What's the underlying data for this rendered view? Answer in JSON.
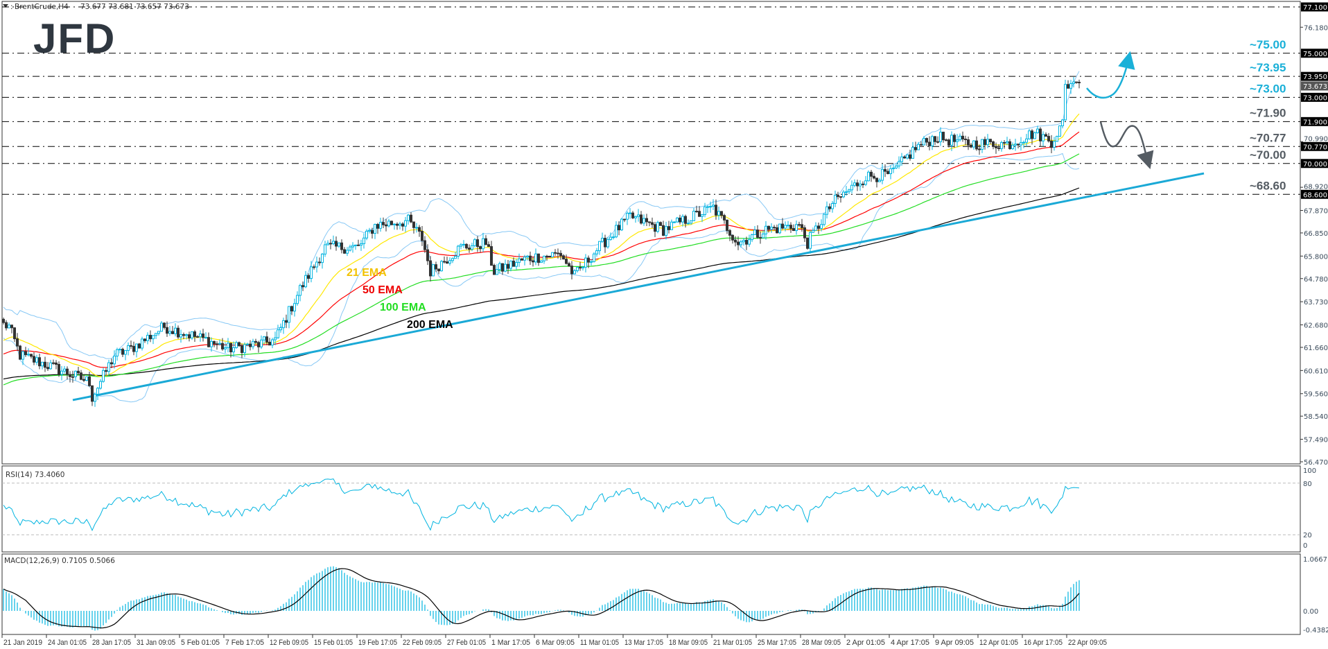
{
  "header": {
    "symbol": "BrentCrude,H4",
    "ohlc": "73.677 73.681 73.657 73.673"
  },
  "logo": {
    "text": "JFD"
  },
  "colors": {
    "bull": "#00b4e0",
    "bear": "#333333",
    "bollinger": "#87c8f5",
    "ema21": "#ffe800",
    "ema50": "#ff0000",
    "ema100": "#22dd22",
    "ema200": "#000000",
    "trendline": "#1aa9d6",
    "level_up": "#1ab0d8",
    "level_down": "#555c63",
    "macd_hist": "#00b4e0"
  },
  "chart_data": {
    "type": "candlestick",
    "symbol": "BrentCrude",
    "timeframe": "H4",
    "ylim": [
      56.47,
      77.1
    ],
    "current_price": 73.673,
    "price_path": [
      [
        0,
        62.7
      ],
      [
        2,
        62.6
      ],
      [
        6,
        61.3
      ],
      [
        15,
        60.9
      ],
      [
        31,
        60.1
      ],
      [
        32,
        59.4
      ],
      [
        40,
        61.3
      ],
      [
        46,
        61.6
      ],
      [
        58,
        62.6
      ],
      [
        73,
        62.0
      ],
      [
        81,
        61.6
      ],
      [
        92,
        61.8
      ],
      [
        98,
        62.0
      ],
      [
        107,
        64.3
      ],
      [
        116,
        66.2
      ],
      [
        128,
        66.2
      ],
      [
        134,
        67.2
      ],
      [
        146,
        67.4
      ],
      [
        151,
        66.6
      ],
      [
        154,
        65.1
      ],
      [
        165,
        66.2
      ],
      [
        174,
        66.4
      ],
      [
        177,
        65.1
      ],
      [
        189,
        65.7
      ],
      [
        201,
        65.9
      ],
      [
        206,
        64.9
      ],
      [
        214,
        66.1
      ],
      [
        226,
        67.6
      ],
      [
        238,
        67.0
      ],
      [
        256,
        68.0
      ],
      [
        265,
        66.4
      ],
      [
        275,
        67.0
      ],
      [
        287,
        67.2
      ],
      [
        290,
        66.4
      ],
      [
        299,
        68.2
      ],
      [
        311,
        69.4
      ],
      [
        320,
        69.5
      ],
      [
        329,
        70.7
      ],
      [
        336,
        71.2
      ],
      [
        348,
        70.9
      ],
      [
        363,
        70.9
      ],
      [
        372,
        71.4
      ],
      [
        378,
        71.0
      ],
      [
        382,
        71.8
      ],
      [
        383,
        73.5
      ],
      [
        386,
        73.7
      ],
      [
        388,
        73.673
      ]
    ],
    "price_ticks": [
      "76.180",
      "70.990",
      "68.920",
      "67.870",
      "66.850",
      "65.800",
      "64.780",
      "63.730",
      "62.680",
      "61.660",
      "60.610",
      "59.560",
      "58.540",
      "57.490",
      "56.470"
    ],
    "levels": [
      {
        "price": 77.1,
        "box": "77.100",
        "label": "",
        "group": "up"
      },
      {
        "price": 75.0,
        "box": "75.000",
        "label": "~75.00",
        "group": "up"
      },
      {
        "price": 73.95,
        "box": "73.950",
        "label": "~73.95",
        "group": "up"
      },
      {
        "price": 73.0,
        "box": "73.000",
        "label": "~73.00",
        "group": "up"
      },
      {
        "price": 71.9,
        "box": "71.900",
        "label": "~71.90",
        "group": "down"
      },
      {
        "price": 70.77,
        "box": "70.770",
        "label": "~70.77",
        "group": "down"
      },
      {
        "price": 70.0,
        "box": "70.000",
        "label": "~70.00",
        "group": "down"
      },
      {
        "price": 68.6,
        "box": "68.600",
        "label": "~68.60",
        "group": "down"
      }
    ],
    "current_price_box": "73.673",
    "trendline": {
      "from": [
        25,
        59.27
      ],
      "to": [
        433,
        69.55
      ]
    },
    "ema_labels": [
      {
        "key": "ema21",
        "text": "21 EMA"
      },
      {
        "key": "ema50",
        "text": "50 EMA"
      },
      {
        "key": "ema100",
        "text": "100 EMA"
      },
      {
        "key": "ema200",
        "text": "200 EMA"
      }
    ],
    "x_labels": [
      "21 Jan 2019",
      "24 Jan 01:05",
      "28 Jan 17:05",
      "31 Jan 09:05",
      "5 Feb 01:05",
      "7 Feb 17:05",
      "12 Feb 09:05",
      "15 Feb 01:05",
      "19 Feb 17:05",
      "22 Feb 09:05",
      "27 Feb 01:05",
      "1 Mar 17:05",
      "6 Mar 09:05",
      "11 Mar 01:05",
      "13 Mar 17:05",
      "18 Mar 09:05",
      "21 Mar 01:05",
      "25 Mar 17:05",
      "28 Mar 09:05",
      "2 Apr 01:05",
      "4 Apr 17:05",
      "9 Apr 09:05",
      "12 Apr 01:05",
      "16 Apr 17:05",
      "22 Apr 09:05"
    ],
    "rsi": {
      "label": "RSI(14) 73.4060",
      "ticks": [
        "100",
        "80",
        "20",
        "0"
      ],
      "levels": [
        80,
        20
      ]
    },
    "macd": {
      "label": "MACD(12,26,9) 0.7105 0.5066",
      "ticks": [
        "1.0667",
        "0.00",
        "-0.4382"
      ],
      "ylim": [
        -0.4382,
        1.0667
      ]
    }
  }
}
